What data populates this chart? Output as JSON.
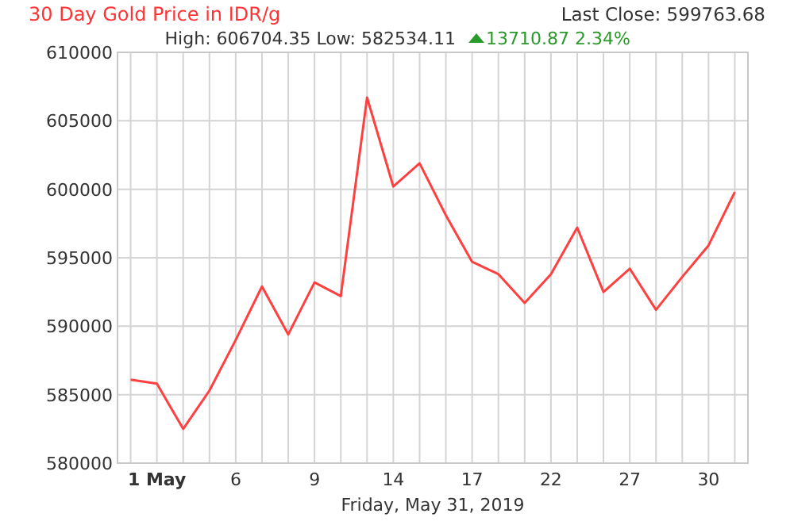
{
  "chart_data": {
    "type": "line",
    "title": "30 Day Gold Price in IDR/g",
    "xlabel": "Friday, May 31, 2019",
    "annotations": [
      "Last Close: 599763.68",
      "High: 606704.35 Low: 582534.11",
      "13710.87 2.34%"
    ],
    "categories": [
      null,
      "1 May",
      null,
      null,
      "6",
      null,
      null,
      "9",
      null,
      null,
      "14",
      null,
      null,
      "17",
      null,
      null,
      "22",
      null,
      null,
      "27",
      null,
      null,
      "30",
      null
    ],
    "series": [
      {
        "color": "#ff4040",
        "values": [
          586100,
          585800,
          582500,
          585300,
          589000,
          592900,
          589400,
          593200,
          592200,
          606700,
          600200,
          601900,
          598100,
          594700,
          593800,
          591700,
          593800,
          597200,
          592500,
          594200,
          591200,
          593600,
          595900,
          599800
        ]
      }
    ],
    "ylim": [
      580000,
      610000
    ],
    "yticks": [
      580000,
      585000,
      590000,
      595000,
      600000,
      605000,
      610000
    ],
    "grid": true,
    "line_style": "solid"
  }
}
